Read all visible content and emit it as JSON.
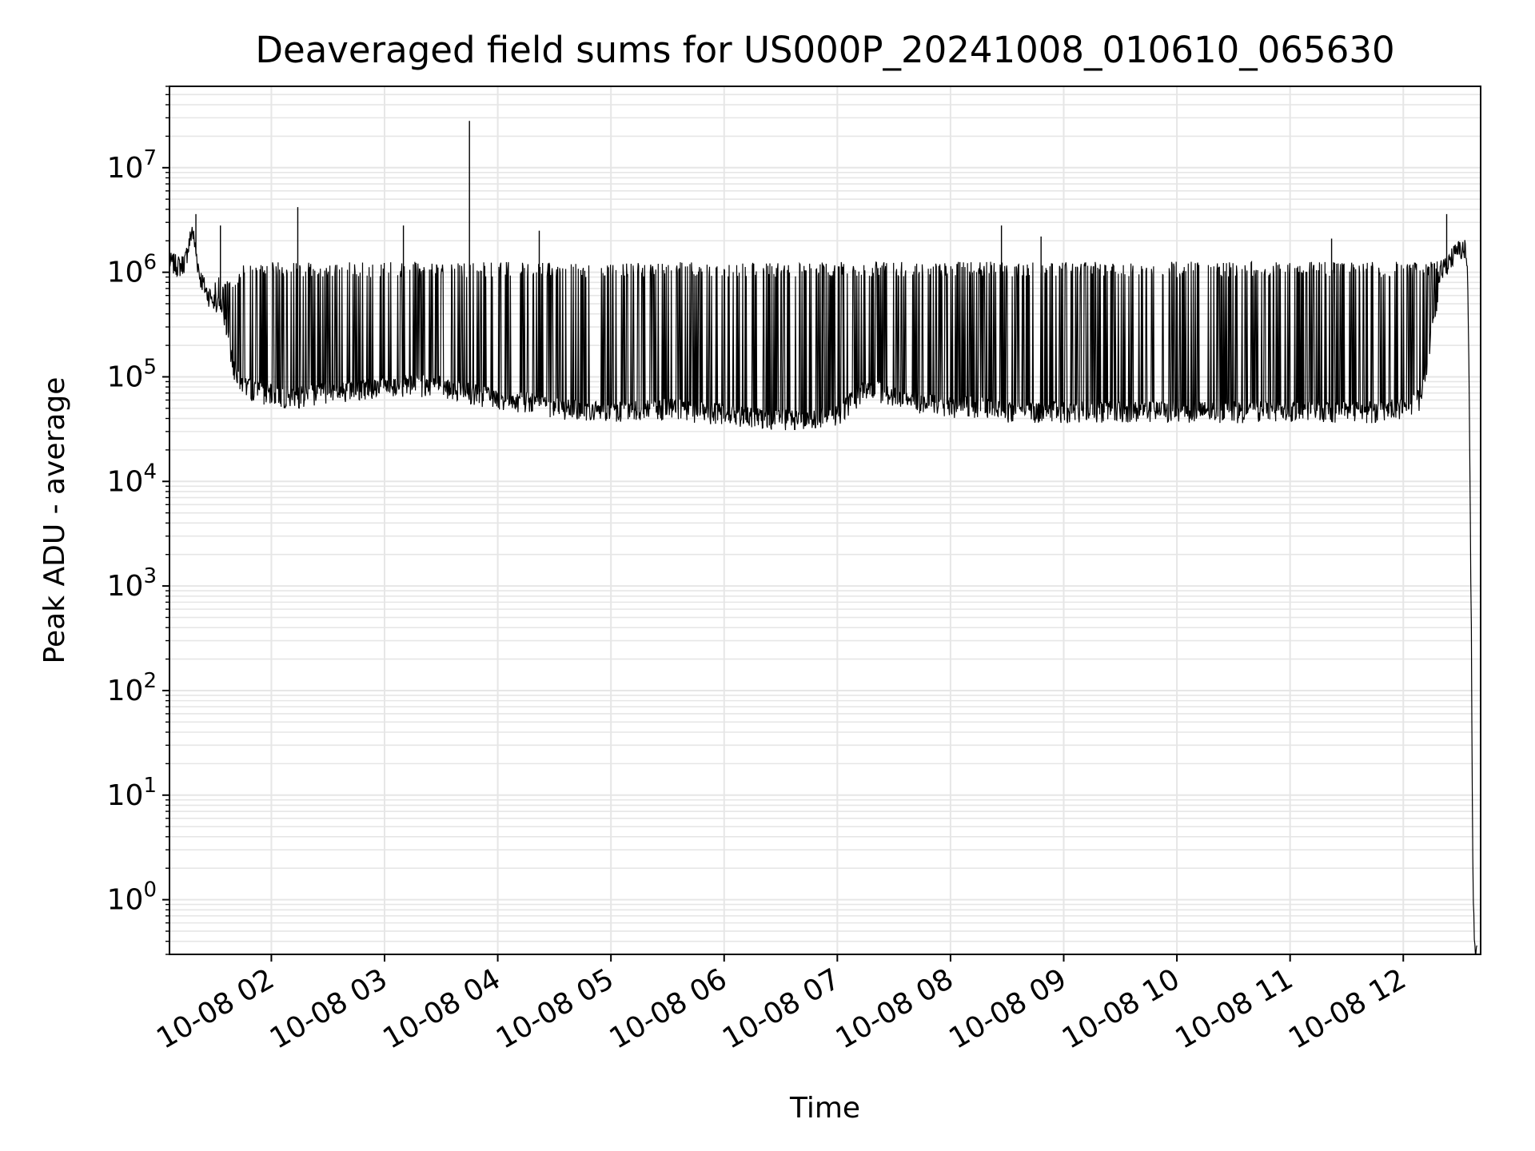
{
  "chart_data": {
    "type": "line",
    "title": "Deaveraged field sums for US000P_20241008_010610_065630",
    "xlabel": "Time",
    "ylabel": "Peak ADU - average",
    "yscale": "log",
    "ylim": [
      0.3,
      60000000
    ],
    "xlim": [
      "2024-10-08 01:06",
      "2024-10-08 12:41"
    ],
    "grid": true,
    "grid_color": "#e6e6e6",
    "line_color": "#000000",
    "x_ticks": [
      "10-08 02",
      "10-08 03",
      "10-08 04",
      "10-08 05",
      "10-08 06",
      "10-08 07",
      "10-08 08",
      "10-08 09",
      "10-08 10",
      "10-08 11",
      "10-08 12"
    ],
    "y_ticks": [
      "10^0",
      "10^1",
      "10^2",
      "10^3",
      "10^4",
      "10^5",
      "10^6",
      "10^7"
    ],
    "series": [
      {
        "x": [
          "2024-10-08 01:06",
          "2024-10-08 01:12",
          "2024-10-08 01:15",
          "2024-10-08 01:18",
          "2024-10-08 01:22",
          "2024-10-08 01:26",
          "2024-10-08 01:32",
          "2024-10-08 01:36",
          "2024-10-08 01:40",
          "2024-10-08 01:45",
          "2024-10-08 01:52",
          "2024-10-08 02:00",
          "2024-10-08 02:10",
          "2024-10-08 02:20",
          "2024-10-08 02:30",
          "2024-10-08 02:40",
          "2024-10-08 02:50",
          "2024-10-08 03:00",
          "2024-10-08 03:15",
          "2024-10-08 03:30",
          "2024-10-08 03:42",
          "2024-10-08 03:50",
          "2024-10-08 04:00",
          "2024-10-08 04:15",
          "2024-10-08 04:30",
          "2024-10-08 04:45",
          "2024-10-08 05:00",
          "2024-10-08 05:15",
          "2024-10-08 05:30",
          "2024-10-08 05:45",
          "2024-10-08 06:00",
          "2024-10-08 06:15",
          "2024-10-08 06:30",
          "2024-10-08 06:45",
          "2024-10-08 07:00",
          "2024-10-08 07:15",
          "2024-10-08 07:30",
          "2024-10-08 07:45",
          "2024-10-08 08:00",
          "2024-10-08 08:15",
          "2024-10-08 08:30",
          "2024-10-08 08:45",
          "2024-10-08 09:00",
          "2024-10-08 09:15",
          "2024-10-08 09:30",
          "2024-10-08 09:45",
          "2024-10-08 10:00",
          "2024-10-08 10:15",
          "2024-10-08 10:30",
          "2024-10-08 10:45",
          "2024-10-08 11:00",
          "2024-10-08 11:15",
          "2024-10-08 11:30",
          "2024-10-08 11:45",
          "2024-10-08 12:00",
          "2024-10-08 12:10",
          "2024-10-08 12:20",
          "2024-10-08 12:25",
          "2024-10-08 12:30",
          "2024-10-08 12:33",
          "2024-10-08 12:34",
          "2024-10-08 12:35",
          "2024-10-08 12:36",
          "2024-10-08 12:37",
          "2024-10-08 12:38",
          "2024-10-08 12:39"
        ],
        "y": [
          1200000,
          1100000,
          1300000,
          2500000,
          900000,
          600000,
          500000,
          300000,
          120000,
          80000,
          70000,
          65000,
          60000,
          65000,
          70000,
          70000,
          75000,
          80000,
          80000,
          80000,
          70000,
          65000,
          60000,
          55000,
          50000,
          45000,
          45000,
          47000,
          48000,
          45000,
          43000,
          40000,
          38000,
          37000,
          42000,
          75000,
          65000,
          55000,
          50000,
          50000,
          45000,
          45000,
          45000,
          45000,
          45000,
          45000,
          45000,
          45000,
          45000,
          45000,
          45000,
          45000,
          45000,
          45000,
          50000,
          60000,
          1000000,
          1300000,
          1600000,
          1600000,
          1000000,
          60000,
          500,
          1,
          0.3,
          0.3
        ],
        "upper_envelope": [
          1200000,
          1200000,
          2000000,
          2500000,
          1000000,
          700000,
          1000000,
          800000,
          900000,
          1200000,
          1200000,
          1200000,
          1200000,
          1200000,
          1200000,
          1200000,
          1200000,
          1200000,
          1200000,
          1200000,
          1200000,
          1200000,
          1200000,
          1200000,
          1200000,
          1200000,
          1200000,
          1200000,
          1200000,
          1200000,
          1200000,
          1200000,
          1200000,
          1200000,
          1200000,
          1200000,
          1200000,
          1200000,
          1200000,
          1200000,
          1200000,
          1200000,
          1200000,
          1200000,
          1200000,
          1200000,
          1200000,
          1200000,
          1200000,
          1200000,
          1200000,
          1200000,
          1200000,
          1200000,
          1200000,
          1200000,
          1300000,
          1600000,
          1800000,
          1800000,
          1000000,
          60000,
          500,
          1,
          0.3,
          0.3
        ]
      }
    ],
    "spikes": [
      {
        "x": "2024-10-08 01:20",
        "y": 3600000
      },
      {
        "x": "2024-10-08 01:33",
        "y": 2800000
      },
      {
        "x": "2024-10-08 02:14",
        "y": 4200000
      },
      {
        "x": "2024-10-08 03:10",
        "y": 2800000
      },
      {
        "x": "2024-10-08 03:45",
        "y": 28000000
      },
      {
        "x": "2024-10-08 04:22",
        "y": 2500000
      },
      {
        "x": "2024-10-08 08:27",
        "y": 2800000
      },
      {
        "x": "2024-10-08 08:48",
        "y": 2200000
      },
      {
        "x": "2024-10-08 11:22",
        "y": 2100000
      },
      {
        "x": "2024-10-08 12:23",
        "y": 3600000
      }
    ]
  }
}
